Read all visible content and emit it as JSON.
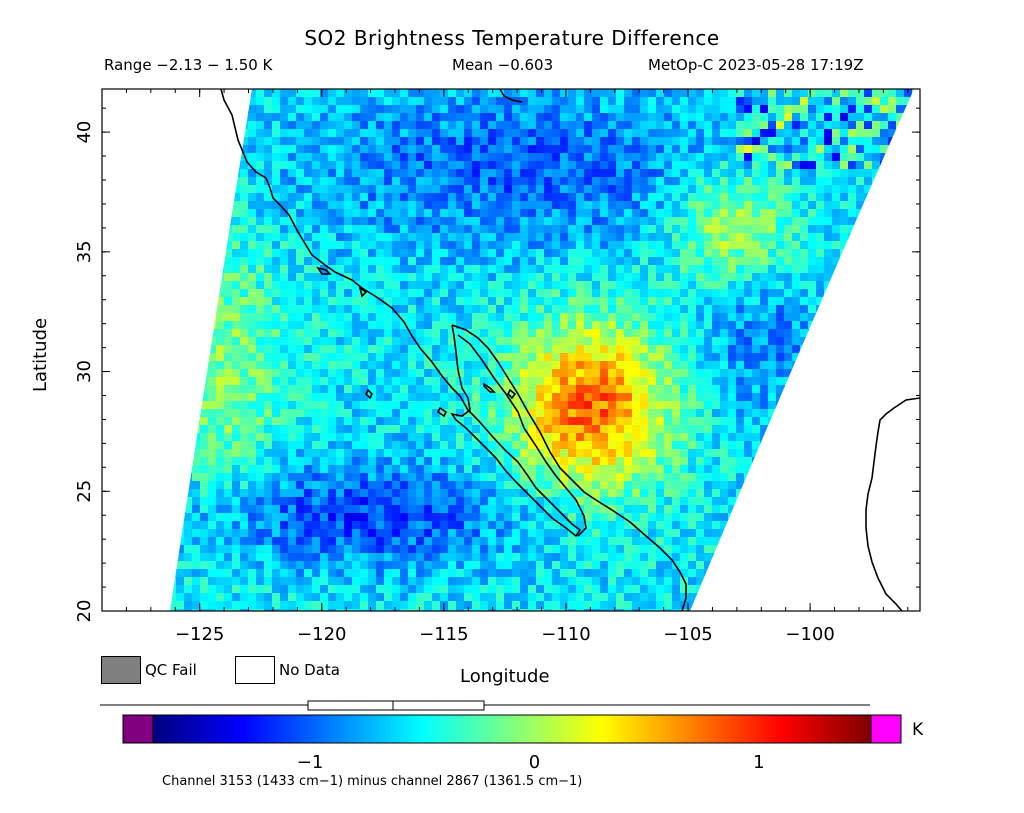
{
  "title": "SO2 Brightness Temperature Difference",
  "range_text": "Range −2.13 − 1.50 K",
  "mean_text": "Mean −0.603",
  "satellite_text": "MetOp-C 2023-05-28 17:19Z",
  "axes": {
    "xlabel": "Longitude",
    "ylabel": "Latitude",
    "xticks": [
      "−125",
      "−120",
      "−115",
      "−110",
      "−105",
      "−100"
    ],
    "xtick_values": [
      -125,
      -120,
      -115,
      -110,
      -105,
      -100
    ],
    "yticks": [
      "20",
      "25",
      "30",
      "35",
      "40"
    ],
    "ytick_values": [
      20,
      25,
      30,
      35,
      40
    ],
    "xlim": [
      -129,
      -95.5
    ],
    "ylim": [
      20,
      41.8
    ]
  },
  "legend": {
    "qc_fail": "QC Fail",
    "no_data": "No Data",
    "qc_fail_color": "#7f7f7f",
    "no_data_color": "#ffffff"
  },
  "colorbar": {
    "unit": "K",
    "ticks": [
      "−1",
      "0",
      "1"
    ],
    "tick_values": [
      -1,
      0,
      1
    ],
    "vmin": -1.7,
    "vmax": 1.5,
    "under_color": "#800080",
    "over_color": "#ff00ff",
    "stops": [
      "#00007f",
      "#0000ff",
      "#0080ff",
      "#00ffff",
      "#7fff7f",
      "#ffff00",
      "#ff8000",
      "#ff0000",
      "#7f0000"
    ]
  },
  "footnote": "Channel 3153 (1433 cm−1) minus channel 2867 (1361.5 cm−1)",
  "map_data": {
    "field_pattern": "noisy brightness temperature difference; strongly negative (< -1.5 K) patch centered near 24N 118W; positive (~0.5 to 1 K) plume over Sonora / Chihuahua near 28N 109W; mostly -1 to -0.5 K over northern areas",
    "coastline": "western North America: California, Baja California peninsula, mainland Mexico, Texas Gulf coast"
  }
}
